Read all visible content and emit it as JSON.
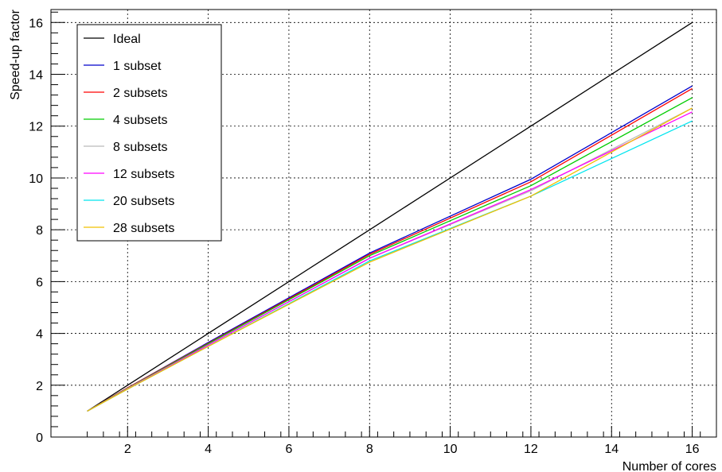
{
  "chart_data": {
    "type": "line",
    "xlabel": "Number of cores",
    "ylabel": "Speed-up factor",
    "xlim": [
      0.1,
      16.6
    ],
    "ylim": [
      0,
      16.5
    ],
    "x_ticks": [
      2,
      4,
      6,
      8,
      10,
      12,
      14,
      16
    ],
    "y_ticks": [
      0,
      2,
      4,
      6,
      8,
      10,
      12,
      14,
      16
    ],
    "grid": true,
    "legend_position": "top-left",
    "x": [
      1,
      2,
      4,
      8,
      12,
      16
    ],
    "series": [
      {
        "name": "Ideal",
        "color": "#000000",
        "values": [
          1,
          2,
          4,
          8,
          12,
          16
        ]
      },
      {
        "name": "1 subset",
        "color": "#0000cc",
        "values": [
          1,
          1.9,
          3.65,
          7.1,
          9.95,
          13.55
        ]
      },
      {
        "name": "2 subsets",
        "color": "#ff0000",
        "values": [
          1,
          1.9,
          3.62,
          7.05,
          9.85,
          13.45
        ]
      },
      {
        "name": "4 subsets",
        "color": "#00cc00",
        "values": [
          1,
          1.88,
          3.6,
          7.0,
          9.7,
          13.1
        ]
      },
      {
        "name": "8 subsets",
        "color": "#bbbbbb",
        "values": [
          1,
          1.87,
          3.55,
          6.9,
          9.5,
          12.7
        ]
      },
      {
        "name": "12 subsets",
        "color": "#ff00ff",
        "values": [
          1,
          1.86,
          3.55,
          6.9,
          9.55,
          12.55
        ]
      },
      {
        "name": "20 subsets",
        "color": "#00e5ee",
        "values": [
          1,
          1.85,
          3.5,
          6.8,
          9.3,
          12.2
        ]
      },
      {
        "name": "28 subsets",
        "color": "#f0c000",
        "values": [
          1,
          1.85,
          3.5,
          6.75,
          9.3,
          12.7
        ]
      }
    ]
  }
}
